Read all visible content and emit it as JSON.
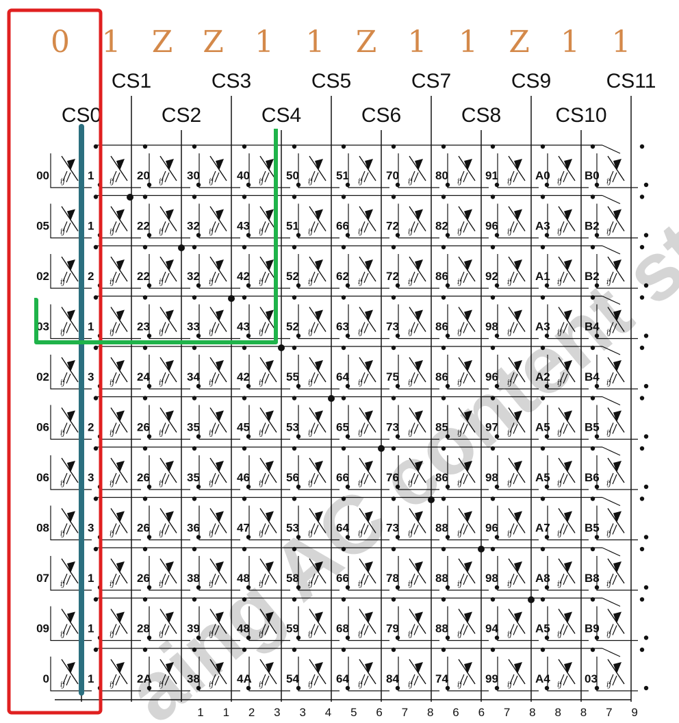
{
  "colors": {
    "state_digits": "#d4894a",
    "wire": "#111111",
    "highlight_box": "#e02020",
    "highlight_column": "#2b6f7f",
    "highlight_path": "#1fb34a",
    "watermark": "#9a9a9a"
  },
  "state_digits": [
    "0",
    "1",
    "Z",
    "Z",
    "1",
    "1",
    "Z",
    "1",
    "1",
    "Z",
    "1",
    "1"
  ],
  "cs_top": [
    "CS1",
    "CS3",
    "CS5",
    "CS7",
    "CS9",
    "CS11"
  ],
  "cs_bottom": [
    "CS0",
    "CS2",
    "CS4",
    "CS6",
    "CS8",
    "CS10"
  ],
  "grid_labels": [
    [
      "00",
      "1",
      "20",
      "30",
      "40",
      "50",
      "51",
      "70",
      "80",
      "91",
      "A0",
      "B0"
    ],
    [
      "05",
      "1",
      "22",
      "32",
      "43",
      "51",
      "66",
      "72",
      "82",
      "96",
      "A3",
      "B2"
    ],
    [
      "02",
      "2",
      "22",
      "32",
      "42",
      "52",
      "62",
      "72",
      "86",
      "92",
      "A1",
      "B2"
    ],
    [
      "03",
      "1",
      "23",
      "33",
      "43",
      "52",
      "63",
      "73",
      "86",
      "98",
      "A3",
      "B4"
    ],
    [
      "02",
      "3",
      "24",
      "34",
      "42",
      "55",
      "64",
      "75",
      "86",
      "96",
      "A2",
      "B4"
    ],
    [
      "06",
      "2",
      "26",
      "35",
      "45",
      "53",
      "65",
      "73",
      "85",
      "97",
      "A5",
      "B5"
    ],
    [
      "06",
      "3",
      "26",
      "35",
      "46",
      "56",
      "66",
      "76",
      "86",
      "98",
      "A5",
      "B6"
    ],
    [
      "08",
      "3",
      "26",
      "36",
      "47",
      "53",
      "64",
      "73",
      "88",
      "96",
      "A7",
      "B5"
    ],
    [
      "07",
      "1",
      "26",
      "38",
      "48",
      "58",
      "66",
      "78",
      "88",
      "98",
      "A8",
      "B8"
    ],
    [
      "09",
      "1",
      "28",
      "39",
      "48",
      "59",
      "68",
      "79",
      "88",
      "94",
      "A5",
      "B9"
    ],
    [
      "0",
      "1",
      "2A",
      "38",
      "4A",
      "54",
      "64",
      "84",
      "74",
      "99",
      "A4",
      "03"
    ]
  ],
  "bottom_numbers": [
    "1",
    "1",
    "2",
    "3",
    "3",
    "4",
    "5",
    "6",
    "7",
    "8",
    "6",
    "6",
    "7",
    "8",
    "8",
    "8",
    "7",
    "9"
  ],
  "watermark": "aing AC content stu"
}
